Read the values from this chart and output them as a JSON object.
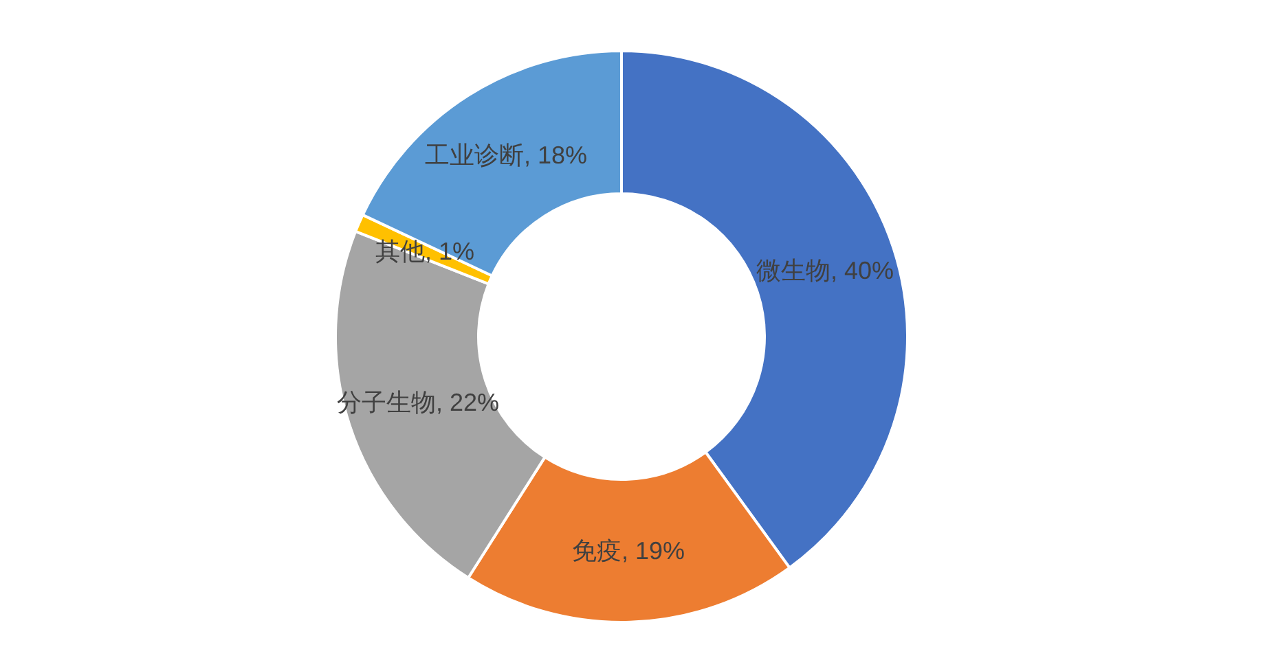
{
  "chart_data": {
    "type": "donut",
    "categories": [
      "微生物",
      "免疫",
      "分子生物",
      "其他",
      "工业诊断"
    ],
    "values": [
      40,
      19,
      22,
      1,
      18
    ],
    "colors": [
      "#4472c4",
      "#ed7d31",
      "#a5a5a5",
      "#ffc000",
      "#5b9bd5"
    ],
    "value_labels": [
      "40%",
      "19%",
      "22%",
      "1%",
      "18%"
    ]
  }
}
